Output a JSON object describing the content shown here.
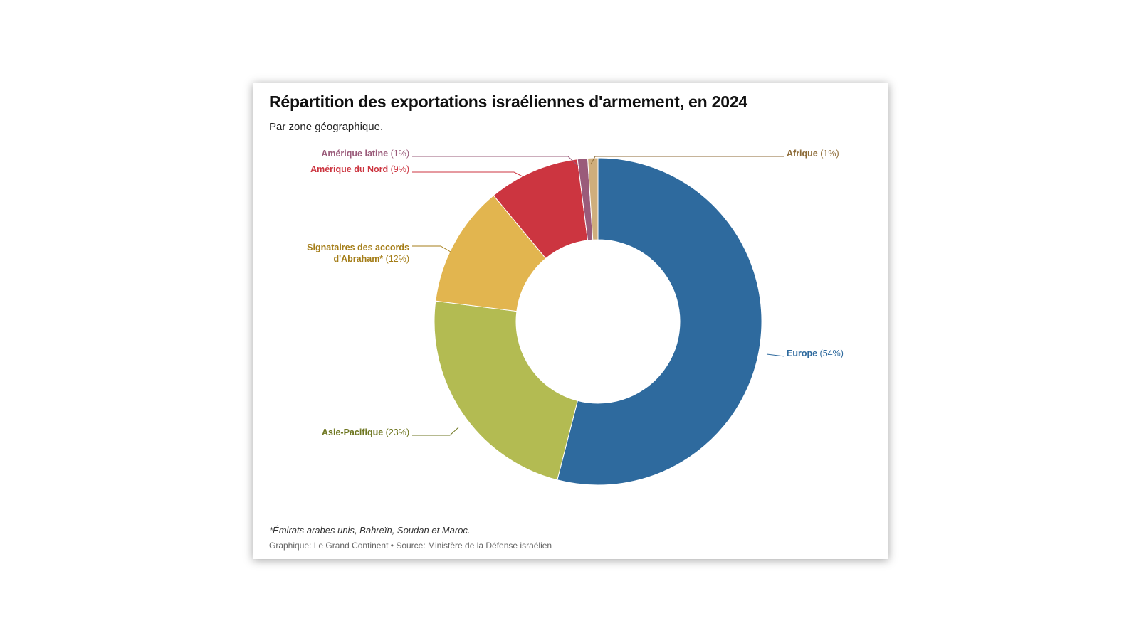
{
  "title": "Répartition des exportations israéliennes d'armement, en 2024",
  "subtitle": "Par zone géographique.",
  "footnote": "*Émirats arabes unis, Bahreïn, Soudan et Maroc.",
  "credit": "Graphique: Le Grand Continent • Source: Ministère de la Défense israélien",
  "chart_data": {
    "type": "pie",
    "variant": "donut",
    "title": "Répartition des exportations israéliennes d'armement, en 2024",
    "subtitle": "Par zone géographique.",
    "unit": "%",
    "slices": [
      {
        "label": "Europe",
        "value": 54,
        "value_text": "(54%)",
        "color": "#2e6a9e"
      },
      {
        "label": "Asie-Pacifique",
        "value": 23,
        "value_text": "(23%)",
        "color": "#b3bb52",
        "label_color": "#6e7620"
      },
      {
        "label": "Signataires des accords d'Abraham*",
        "value": 12,
        "value_text": "(12%)",
        "color": "#e2b54f",
        "label_color": "#a47d18"
      },
      {
        "label": "Amérique du Nord",
        "value": 9,
        "value_text": "(9%)",
        "color": "#cc3540"
      },
      {
        "label": "Amérique latine",
        "value": 1,
        "value_text": "(1%)",
        "color": "#9a5b7a"
      },
      {
        "label": "Afrique",
        "value": 1,
        "value_text": "(1%)",
        "color": "#cfae7c",
        "label_color": "#8c6a36"
      }
    ],
    "legend": "none (direct labels)"
  }
}
